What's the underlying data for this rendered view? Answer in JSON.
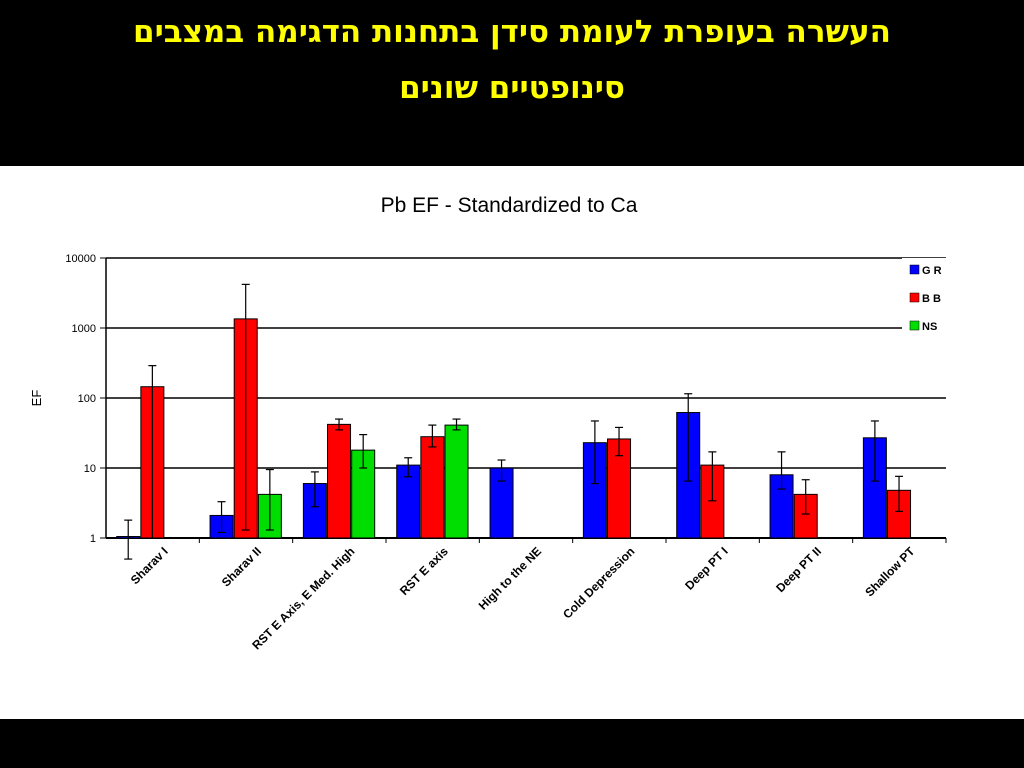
{
  "slide": {
    "title_line1": "העשרה בעופרת לעומת סידן בתחנות הדגימה במצבים",
    "title_line2": "סינופטיים שונים"
  },
  "chart_data": {
    "type": "bar",
    "title": "Pb EF - Standardized to Ca",
    "ylabel": "EF",
    "xlabel": "",
    "yscale": "log",
    "ylim": [
      1,
      10000
    ],
    "yticks": [
      "1",
      "10",
      "100",
      "1000",
      "10000"
    ],
    "grid": "horizontal",
    "legend_position": "top-right",
    "categories": [
      "Sharav I",
      "Sharav II",
      "RST E Axis, E Med. High",
      "RST E axis",
      "High to the NE",
      "Cold Depression",
      "Deep PT I",
      "Deep PT II",
      "Shallow PT"
    ],
    "series": [
      {
        "name": "G R",
        "color": "#0000ff",
        "values": [
          1.05,
          2.1,
          6,
          11,
          10,
          23,
          62,
          8,
          27
        ],
        "errors_low": [
          0.5,
          1.2,
          2.8,
          7.5,
          6.5,
          6,
          6.5,
          5,
          6.5
        ],
        "errors_high": [
          1.8,
          3.3,
          8.8,
          14,
          13,
          47,
          115,
          17,
          47
        ]
      },
      {
        "name": "B B",
        "color": "#ff0000",
        "values": [
          145,
          1350,
          42,
          28,
          null,
          26,
          11,
          4.2,
          4.8
        ],
        "errors_low": [
          null,
          1.3,
          35,
          20,
          null,
          15,
          3.4,
          2.2,
          2.4
        ],
        "errors_high": [
          290,
          4200,
          50,
          41,
          null,
          38,
          17,
          6.8,
          7.6
        ]
      },
      {
        "name": "NS",
        "color": "#00dd00",
        "values": [
          null,
          4.2,
          18,
          41,
          null,
          null,
          null,
          null,
          null
        ],
        "errors_low": [
          null,
          1.3,
          10,
          35,
          null,
          null,
          null,
          null,
          null
        ],
        "errors_high": [
          null,
          9.5,
          30,
          50,
          null,
          null,
          null,
          null,
          null
        ]
      }
    ]
  }
}
